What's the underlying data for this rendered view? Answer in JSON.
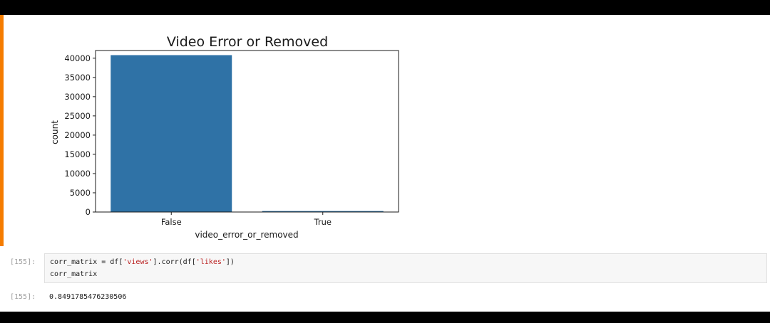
{
  "chart_data": {
    "type": "bar",
    "title": "Video Error or Removed",
    "xlabel": "video_error_or_removed",
    "ylabel": "count",
    "categories": [
      "False",
      "True"
    ],
    "values": [
      40800,
      250
    ],
    "ylim": [
      0,
      42000
    ],
    "yticks": [
      0,
      5000,
      10000,
      15000,
      20000,
      25000,
      30000,
      35000,
      40000
    ],
    "color": "#2f72a6",
    "grid": false
  },
  "cells": [
    {
      "prompt": "[155]:",
      "code": {
        "line1_pre": "corr_matrix = df[",
        "line1_s1": "'views'",
        "line1_mid": "].corr(df[",
        "line1_s2": "'likes'",
        "line1_post": "])",
        "line2": "corr_matrix"
      },
      "output_prompt": "[155]:",
      "output": "0.8491785476230506"
    }
  ]
}
